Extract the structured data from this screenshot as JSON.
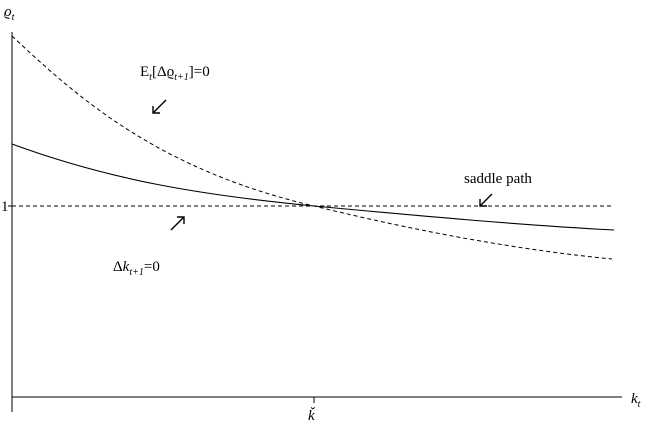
{
  "diagram": {
    "y_axis_label": "ϱ",
    "y_axis_sub": "t",
    "x_axis_label": "k",
    "x_axis_sub": "t",
    "y_tick_label": "1",
    "x_tick_label": "ǩ",
    "curves": {
      "rho_steady": {
        "label_prefix": "E",
        "label_sub": "t",
        "label_bracket_open": "[Δϱ",
        "label_bracket_sub": "t+1",
        "label_tail": "]=0",
        "style": "dashed"
      },
      "k_steady": {
        "label_prefix": "Δ",
        "label_var": "k",
        "label_sub": "t+1",
        "label_tail": "=0",
        "style": "dashed"
      },
      "saddle_path": {
        "label": "saddle path",
        "style": "solid"
      }
    },
    "arrows": [
      {
        "name": "arrow-rho-locus",
        "direction": "down-left"
      },
      {
        "name": "arrow-k-locus",
        "direction": "up-right"
      },
      {
        "name": "arrow-saddle-path",
        "direction": "down-left"
      }
    ]
  }
}
